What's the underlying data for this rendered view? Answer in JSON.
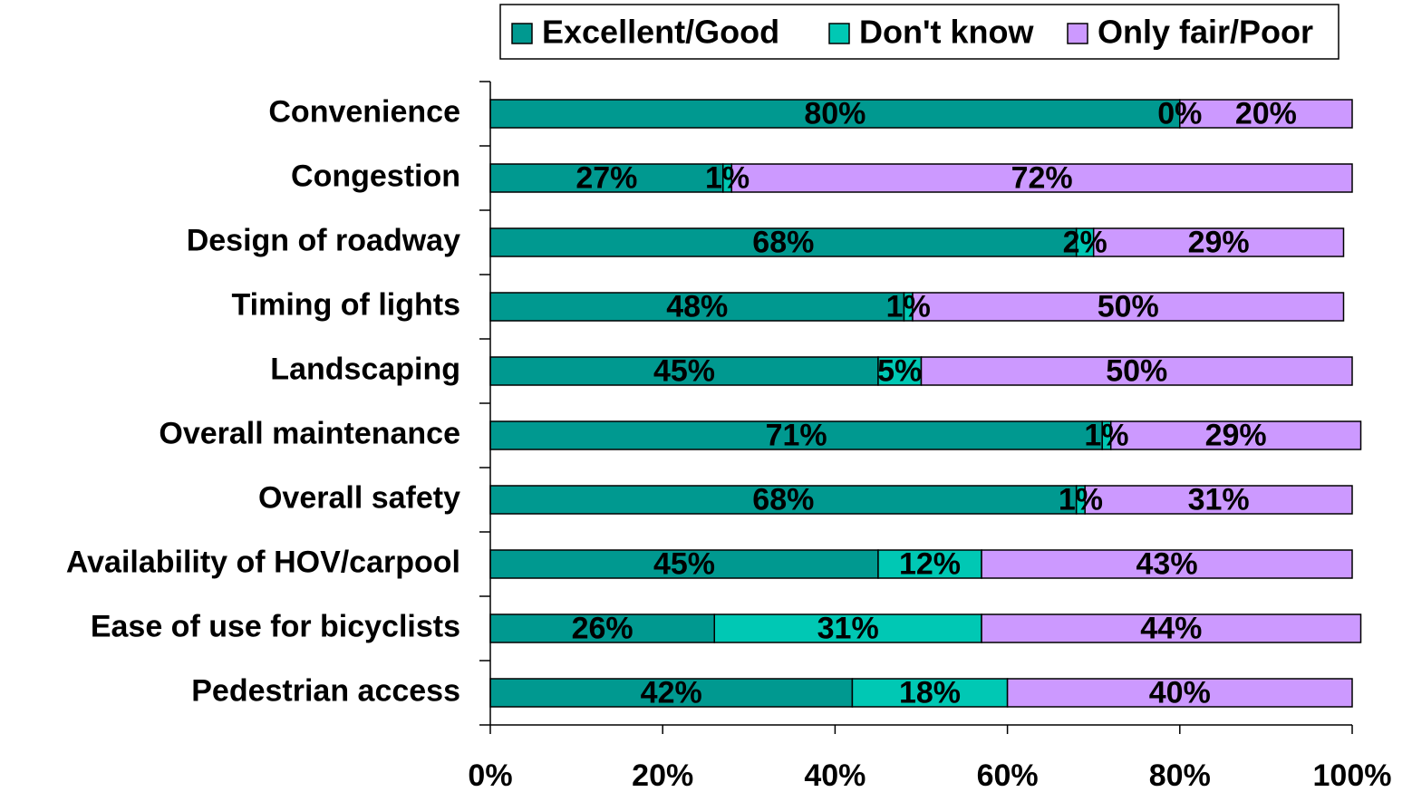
{
  "chart_data": {
    "type": "stacked_bar_horizontal",
    "categories": [
      "Convenience",
      "Congestion",
      "Design of roadway",
      "Timing of lights",
      "Landscaping",
      "Overall maintenance",
      "Overall safety",
      "Availability of HOV/carpool",
      "Ease of use for bicyclists",
      "Pedestrian access"
    ],
    "series": [
      {
        "name": "Excellent/Good",
        "color": "#009990",
        "values": [
          80,
          27,
          68,
          48,
          45,
          71,
          68,
          45,
          26,
          42
        ],
        "value_labels": [
          "80%",
          "27%",
          "68%",
          "48%",
          "45%",
          "71%",
          "68%",
          "45%",
          "26%",
          "42%"
        ]
      },
      {
        "name": "Don't know",
        "color": "#00c8b4",
        "values": [
          0,
          1,
          2,
          1,
          5,
          1,
          1,
          12,
          31,
          18
        ],
        "value_labels": [
          "0%",
          "1%",
          "2%",
          "1%",
          "5%",
          "1%",
          "1%",
          "12%",
          "31%",
          "18%"
        ]
      },
      {
        "name": "Only fair/Poor",
        "color": "#cc99ff",
        "values": [
          20,
          72,
          29,
          50,
          50,
          29,
          31,
          43,
          44,
          40
        ],
        "value_labels": [
          "20%",
          "72%",
          "29%",
          "50%",
          "50%",
          "29%",
          "31%",
          "43%",
          "44%",
          "40%"
        ]
      }
    ],
    "xlim": [
      0,
      100
    ],
    "xticks": [
      {
        "value": 0,
        "label": "0%"
      },
      {
        "value": 20,
        "label": "20%"
      },
      {
        "value": 40,
        "label": "40%"
      },
      {
        "value": 60,
        "label": "60%"
      },
      {
        "value": 80,
        "label": "80%"
      },
      {
        "value": 100,
        "label": "100%"
      }
    ],
    "legend": "top"
  }
}
